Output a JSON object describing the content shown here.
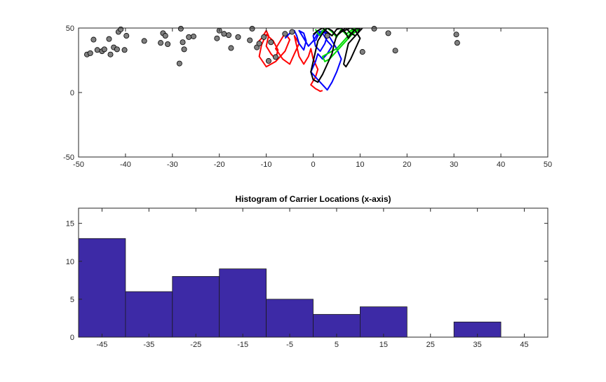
{
  "figure": {
    "background": "#ffffff"
  },
  "chart_data": [
    {
      "type": "scatter",
      "title": "",
      "xlabel": "",
      "ylabel": "",
      "xlim": [
        -50,
        50
      ],
      "ylim": [
        -50,
        50
      ],
      "xticks": [
        -50,
        -40,
        -30,
        -20,
        -10,
        0,
        10,
        20,
        30,
        40,
        50
      ],
      "yticks": [
        -50,
        0,
        50
      ],
      "xtick_labels": [
        "-50",
        "-40",
        "-30",
        "-20",
        "-10",
        "0",
        "10",
        "20",
        "30",
        "40",
        "50"
      ],
      "ytick_labels": [
        "-50",
        "0",
        "50"
      ],
      "grid": false,
      "points": {
        "color": "#808080",
        "x": [
          -48.2,
          -47.5,
          -46.8,
          -46,
          -45,
          -44.5,
          -43.5,
          -43.2,
          -42.5,
          -41.8,
          -41.5,
          -41,
          -40.2,
          -39.8,
          -36,
          -32.5,
          -32,
          -31.5,
          -31,
          -28.5,
          -28.2,
          -27.8,
          -27.5,
          -26.5,
          -25.5,
          -20.5,
          -20,
          -19,
          -18,
          -17.5,
          -16,
          -13.5,
          -13,
          -12,
          -11.5,
          -10.5,
          -9.5,
          -9,
          -8,
          -6,
          -4.5,
          3,
          10.5,
          13,
          16,
          17.5,
          30.5,
          30.7
        ],
        "y": [
          29.5,
          30.5,
          41,
          33,
          32,
          33.5,
          41.5,
          29.5,
          35,
          33.5,
          47,
          49,
          33,
          44,
          40,
          38.5,
          46,
          44,
          37.5,
          22.5,
          49.5,
          39,
          33.5,
          43,
          43.5,
          42,
          48,
          45.5,
          44.5,
          34.5,
          43,
          40.5,
          49.5,
          35,
          38,
          43,
          24.5,
          39,
          27.5,
          45.5,
          47,
          44,
          31.5,
          49.5,
          46,
          32.5,
          45,
          38.5
        ]
      },
      "paths": [
        {
          "color": "#ff0000",
          "x": [
            -12,
            -11,
            -10,
            -9.5,
            -10,
            -9,
            -8,
            -7.5,
            -8.5,
            -10,
            -11,
            -11.5,
            -10,
            -8,
            -6,
            -5,
            -6,
            -7,
            -8,
            -6.5,
            -5,
            -4,
            -3,
            -4,
            -3.5,
            -3,
            -2,
            -1,
            -0.5,
            0,
            1,
            0.5,
            -0.5,
            0.5,
            1,
            1.5,
            2
          ],
          "y": [
            38,
            42,
            48,
            44,
            36,
            30,
            26,
            33,
            40,
            45,
            37,
            28,
            20,
            24,
            32,
            41,
            46,
            40,
            34,
            26,
            22,
            30,
            38,
            44,
            36,
            28,
            22,
            28,
            34,
            26,
            18,
            12,
            6,
            3,
            2,
            1,
            1.5
          ]
        },
        {
          "color": "#0000ff",
          "x": [
            -6,
            -5,
            -4,
            -3.5,
            -3,
            -2,
            -1.5,
            -2,
            -3,
            -2,
            -1,
            0,
            1,
            2,
            3,
            2.5,
            1.5,
            0.5,
            0,
            1,
            2,
            3,
            4,
            3,
            2,
            1,
            0.5,
            0,
            -0.5,
            0.5,
            1.5,
            2.5,
            3,
            4,
            5,
            6,
            5,
            4,
            3,
            2,
            1,
            0.5
          ],
          "y": [
            42,
            46,
            48,
            44,
            38,
            33,
            40,
            46,
            48,
            42,
            36,
            40,
            46,
            48,
            44,
            38,
            32,
            36,
            44,
            48,
            46,
            40,
            36,
            30,
            26,
            30,
            24,
            20,
            16,
            12,
            8,
            4,
            2,
            8,
            16,
            26,
            34,
            40,
            46,
            48,
            44,
            40
          ]
        },
        {
          "color": "#00dd00",
          "x": [
            0.5,
            1,
            1.5,
            2,
            3,
            4,
            5,
            6,
            7,
            8,
            9,
            8,
            7,
            6,
            5,
            4,
            3,
            2,
            2.5,
            3.5,
            4.5,
            5.5,
            6.5,
            7.5,
            8.5,
            9.5,
            10,
            9,
            8,
            7,
            6,
            5
          ],
          "y": [
            49,
            46,
            44,
            48,
            50,
            47,
            43,
            49,
            45,
            48,
            50,
            46,
            42,
            38,
            34,
            32,
            30,
            28,
            24,
            26,
            30,
            34,
            38,
            42,
            46,
            48,
            50,
            47,
            44,
            40,
            36,
            32
          ]
        },
        {
          "color": "#000000",
          "x": [
            0,
            1,
            2,
            3,
            4,
            5,
            6,
            7,
            7.5,
            8,
            9,
            10,
            9.5,
            8.5,
            7.5,
            7,
            6.5,
            7,
            8,
            9,
            10,
            9,
            8,
            6,
            5,
            4,
            3,
            2,
            1,
            0.5,
            0,
            -0.5,
            0,
            1,
            2,
            3,
            4,
            4.5,
            5,
            6,
            7,
            8,
            9,
            10,
            10.5
          ],
          "y": [
            45,
            48,
            50,
            47,
            44,
            49,
            50,
            46,
            42,
            45,
            49,
            50,
            46,
            42,
            38,
            30,
            22,
            20,
            26,
            34,
            42,
            48,
            50,
            47,
            44,
            48,
            50,
            46,
            40,
            32,
            24,
            16,
            10,
            8,
            14,
            22,
            30,
            38,
            44,
            48,
            50,
            46,
            44,
            48,
            50
          ]
        }
      ]
    },
    {
      "type": "bar",
      "title": "Histogram of Carrier Locations (x-axis)",
      "xlabel": "",
      "ylabel": "",
      "xlim": [
        -50,
        50
      ],
      "ylim": [
        0,
        17
      ],
      "xticks": [
        -45,
        -35,
        -25,
        -15,
        -5,
        5,
        15,
        25,
        35,
        45
      ],
      "yticks": [
        0,
        5,
        10,
        15
      ],
      "xtick_labels": [
        "-45",
        "-35",
        "-25",
        "-15",
        "-5",
        "5",
        "15",
        "25",
        "35",
        "45"
      ],
      "ytick_labels": [
        "0",
        "5",
        "10",
        "15"
      ],
      "bin_edges": [
        -50,
        -40,
        -30,
        -20,
        -10,
        0,
        10,
        20,
        30,
        40,
        50
      ],
      "values": [
        13,
        6,
        8,
        9,
        5,
        3,
        4,
        0,
        2,
        0
      ],
      "bar_color": "#3d2aa6",
      "grid": false
    }
  ]
}
